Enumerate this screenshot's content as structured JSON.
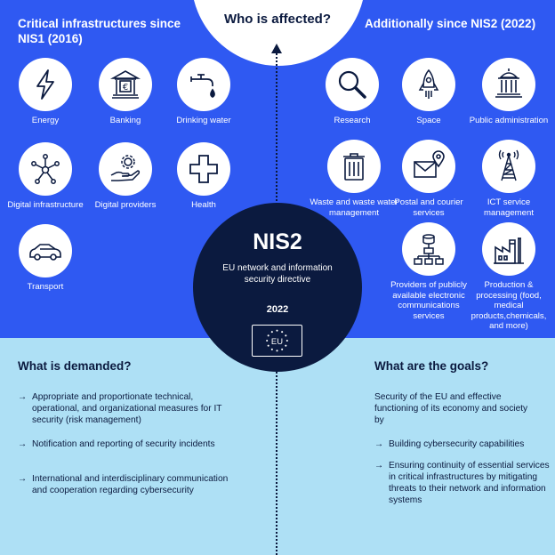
{
  "header": {
    "center_title": "Who is affected?",
    "left_title": "Critical infrastructures since NIS1 (2016)",
    "right_title": "Additionally since NIS2 (2022)"
  },
  "nis1_items": [
    {
      "label": "Energy",
      "icon": "lightning-icon"
    },
    {
      "label": "Banking",
      "icon": "bank-icon"
    },
    {
      "label": "Drinking water",
      "icon": "water-tap-icon"
    },
    {
      "label": "Digital infrastructure",
      "icon": "network-hub-icon"
    },
    {
      "label": "Digital providers",
      "icon": "hand-gear-icon"
    },
    {
      "label": "Health",
      "icon": "medical-cross-icon"
    },
    {
      "label": "Transport",
      "icon": "car-icon"
    }
  ],
  "nis2_items": [
    {
      "label": "Research",
      "icon": "magnifier-icon"
    },
    {
      "label": "Space",
      "icon": "rocket-icon"
    },
    {
      "label": "Public administration",
      "icon": "government-building-icon"
    },
    {
      "label": "Waste and waste water management",
      "icon": "trash-can-icon"
    },
    {
      "label": "Postal and courier services",
      "icon": "envelope-pin-icon"
    },
    {
      "label": "ICT service management",
      "icon": "radio-tower-icon"
    },
    {
      "label": "Providers of publicly available electronic communications services",
      "icon": "network-diagram-icon"
    },
    {
      "label": "Production & processing (food, medical products,chemicals, and more)",
      "icon": "factory-icon"
    }
  ],
  "center": {
    "title": "NIS2",
    "subtitle": "EU network and information security directive",
    "year": "2022",
    "flag_text": "EU"
  },
  "demanded": {
    "title": "What is demanded?",
    "items": [
      "Appropriate and proportionate technical, operational, and organizational measures for IT security (risk management)",
      "Notification and reporting of security incidents",
      "International and interdisciplinary communication and cooperation regarding cybersecurity"
    ]
  },
  "goals": {
    "title": "What are the goals?",
    "intro": "Security of the EU and effective functioning of its economy and society by",
    "items": [
      "Building cybersecurity capabilities",
      "Ensuring continuity of essential services in critical infrastructures by mitigating threats to their network and information systems"
    ]
  },
  "colors": {
    "top_blue": "#2f59f2",
    "bottom_light_blue": "#aee0f5",
    "navy": "#0b1a3f"
  }
}
